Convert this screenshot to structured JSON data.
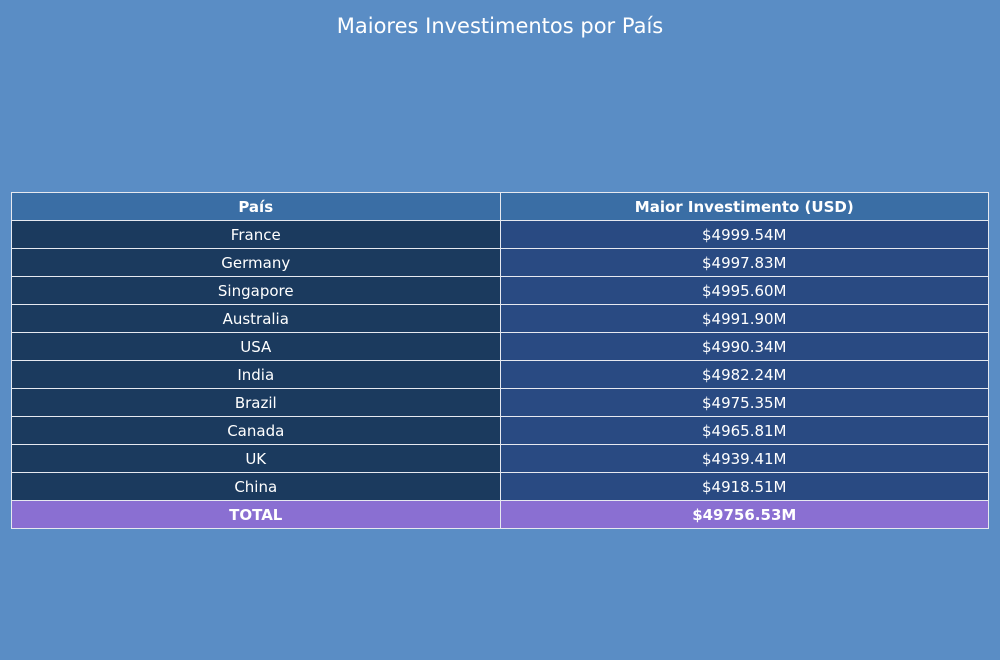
{
  "colors": {
    "background": "#5a8dc5",
    "header_fill": "#3a6ea5",
    "col1_fill": "#1b3a5e",
    "col2_fill": "#294a82",
    "total_fill": "#8a6fd2",
    "text": "#ffffff",
    "border": "#e6e9f0"
  },
  "chart_data": {
    "type": "table",
    "title": "Maiores Investimentos por País",
    "columns": [
      "País",
      "Maior Investimento (USD)"
    ],
    "rows": [
      [
        "France",
        "$4999.54M"
      ],
      [
        "Germany",
        "$4997.83M"
      ],
      [
        "Singapore",
        "$4995.60M"
      ],
      [
        "Australia",
        "$4991.90M"
      ],
      [
        "USA",
        "$4990.34M"
      ],
      [
        "India",
        "$4982.24M"
      ],
      [
        "Brazil",
        "$4975.35M"
      ],
      [
        "Canada",
        "$4965.81M"
      ],
      [
        "UK",
        "$4939.41M"
      ],
      [
        "China",
        "$4918.51M"
      ]
    ],
    "total": [
      "TOTAL",
      "$49756.53M"
    ]
  }
}
